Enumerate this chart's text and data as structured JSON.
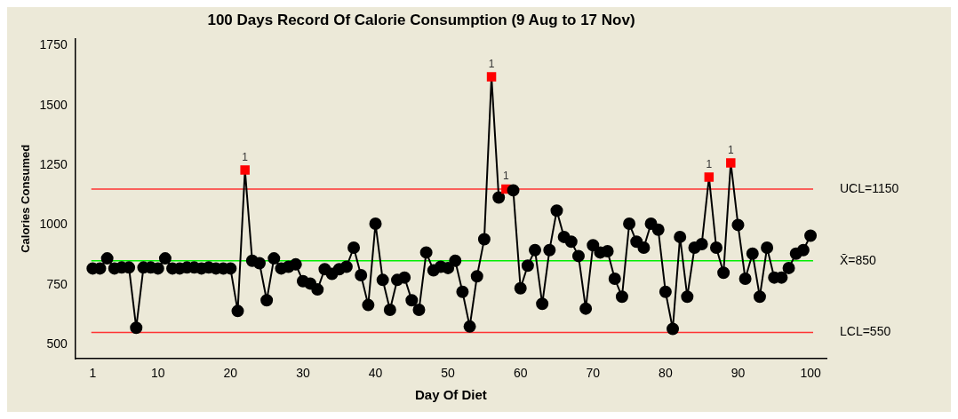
{
  "chart_data": {
    "type": "line",
    "title": "100 Days Record Of Calorie Consumption (9 Aug to 17 Nov)",
    "xlabel": "Day Of Diet",
    "ylabel": "Calories Consumed",
    "x": [
      1,
      2,
      3,
      4,
      5,
      6,
      7,
      8,
      9,
      10,
      11,
      12,
      13,
      14,
      15,
      16,
      17,
      18,
      19,
      20,
      21,
      22,
      23,
      24,
      25,
      26,
      27,
      28,
      29,
      30,
      31,
      32,
      33,
      34,
      35,
      36,
      37,
      38,
      39,
      40,
      41,
      42,
      43,
      44,
      45,
      46,
      47,
      48,
      49,
      50,
      51,
      52,
      53,
      54,
      55,
      56,
      57,
      58,
      59,
      60,
      61,
      62,
      63,
      64,
      65,
      66,
      67,
      68,
      69,
      70,
      71,
      72,
      73,
      74,
      75,
      76,
      77,
      78,
      79,
      80,
      81,
      82,
      83,
      84,
      85,
      86,
      87,
      88,
      89,
      90,
      91,
      92,
      93,
      94,
      95,
      96,
      97,
      98,
      99,
      100
    ],
    "series": [
      {
        "color": "#000000",
        "values": [
          818,
          818,
          860,
          818,
          822,
          822,
          570,
          822,
          822,
          818,
          860,
          818,
          818,
          822,
          822,
          818,
          822,
          818,
          818,
          818,
          640,
          1230,
          850,
          840,
          685,
          860,
          818,
          825,
          835,
          765,
          755,
          730,
          815,
          795,
          815,
          825,
          905,
          790,
          665,
          1005,
          770,
          645,
          770,
          780,
          685,
          645,
          885,
          810,
          825,
          820,
          850,
          720,
          575,
          785,
          940,
          1620,
          1115,
          1150,
          1145,
          735,
          830,
          895,
          670,
          895,
          1060,
          950,
          930,
          870,
          650,
          915,
          885,
          890,
          775,
          700,
          1005,
          930,
          905,
          1005,
          980,
          720,
          565,
          950,
          700,
          905,
          920,
          1200,
          905,
          800,
          1260,
          1000,
          775,
          880,
          700,
          905,
          780,
          780,
          820,
          880,
          895,
          955
        ],
        "colors": [
          "#000000",
          "#000000",
          "#000000",
          "#000000",
          "#000000",
          "#000000",
          "#000000",
          "#000000",
          "#000000",
          "#000000",
          "#000000",
          "#000000",
          "#000000",
          "#000000",
          "#000000",
          "#000000",
          "#000000",
          "#000000",
          "#000000",
          "#000000",
          "#000000",
          "#ff0000",
          "#000000",
          "#000000",
          "#000000",
          "#000000",
          "#000000",
          "#000000",
          "#000000",
          "#000000",
          "#000000",
          "#000000",
          "#000000",
          "#000000",
          "#000000",
          "#000000",
          "#000000",
          "#000000",
          "#000000",
          "#000000",
          "#000000",
          "#000000",
          "#000000",
          "#000000",
          "#000000",
          "#000000",
          "#000000",
          "#000000",
          "#000000",
          "#000000",
          "#000000",
          "#000000",
          "#000000",
          "#000000",
          "#000000",
          "#ff0000",
          "#000000",
          "#ff0000",
          "#000000",
          "#000000",
          "#000000",
          "#000000",
          "#000000",
          "#000000",
          "#000000",
          "#000000",
          "#000000",
          "#000000",
          "#000000",
          "#000000",
          "#000000",
          "#000000",
          "#000000",
          "#000000",
          "#000000",
          "#000000",
          "#000000",
          "#000000",
          "#000000",
          "#000000",
          "#000000",
          "#000000",
          "#000000",
          "#000000",
          "#000000",
          "#ff0000",
          "#000000",
          "#000000",
          "#ff0000",
          "#000000",
          "#000000",
          "#000000",
          "#000000",
          "#000000",
          "#000000",
          "#000000",
          "#000000",
          "#000000",
          "#000000",
          "#000000"
        ]
      }
    ],
    "xlim": [
      -1.4,
      102.2
    ],
    "xticks": [
      1,
      10,
      20,
      30,
      40,
      50,
      60,
      70,
      80,
      90,
      100
    ],
    "ylim": [
      440,
      1780
    ],
    "yticks": [
      500,
      750,
      1000,
      1250,
      1500,
      1750
    ],
    "ref_lines": [
      {
        "axis": "y",
        "value": 1150,
        "label": "UCL=1150",
        "color": "#ff3333"
      },
      {
        "axis": "y",
        "value": 850,
        "label": "X̄=850",
        "color": "#00ee00"
      },
      {
        "axis": "y",
        "value": 550,
        "label": "LCL=550",
        "color": "#ff3333"
      }
    ],
    "annotations": [
      {
        "text": "1",
        "x": 22,
        "y": 1230
      },
      {
        "text": "1",
        "x": 56,
        "y": 1620
      },
      {
        "text": "1",
        "x": 58,
        "y": 1150
      },
      {
        "text": "1",
        "x": 86,
        "y": 1200
      },
      {
        "text": "1",
        "x": 89,
        "y": 1260
      }
    ],
    "grid": false,
    "legend": false,
    "marker": "circle",
    "line_style": "solid"
  }
}
